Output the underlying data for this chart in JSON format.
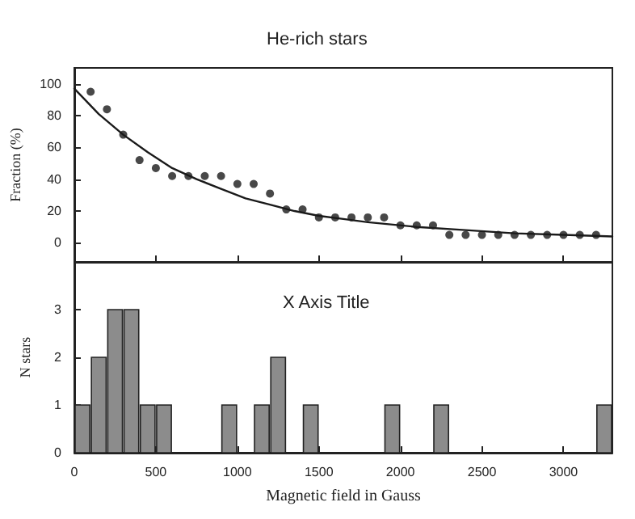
{
  "chart_data": [
    {
      "type": "scatter",
      "title": "He-rich stars",
      "ylabel": "Fraction (%)",
      "xlim": [
        0,
        3300
      ],
      "xticks": [
        {
          "value": 0,
          "label": null
        },
        {
          "value": 500,
          "label": null
        },
        {
          "value": 1000,
          "label": null
        },
        {
          "value": 1500,
          "label": null
        },
        {
          "value": 2000,
          "label": null
        },
        {
          "value": 2500,
          "label": null
        },
        {
          "value": 3000,
          "label": null
        }
      ],
      "ylim": [
        -12,
        110
      ],
      "yticks": [
        0,
        20,
        40,
        60,
        80,
        100
      ],
      "tick_labels": "y",
      "marker": "circle",
      "series": [
        {
          "type": "scatter",
          "color": "#1a1a1a",
          "x": [
            100,
            200,
            300,
            400,
            500,
            600,
            700,
            800,
            900,
            1000,
            1100,
            1200,
            1300,
            1400,
            1500,
            1600,
            1700,
            1800,
            1900,
            2000,
            2100,
            2200,
            2300,
            2400,
            2500,
            2600,
            2700,
            2800,
            2900,
            3000,
            3100,
            3200
          ],
          "values": [
            95,
            84,
            68,
            52,
            47,
            42,
            42,
            42,
            42,
            37,
            37,
            31,
            21,
            21,
            16,
            16,
            16,
            16,
            16,
            11,
            11,
            11,
            5,
            5,
            5,
            5,
            5,
            5,
            5,
            5,
            5,
            5
          ]
        },
        {
          "type": "line",
          "color": "#1a1a1a",
          "marker": "none",
          "line_style": "solid",
          "x": [
            0,
            150,
            300,
            450,
            600,
            750,
            900,
            1050,
            1200,
            1350,
            1500,
            1650,
            1800,
            2100,
            2400,
            2700,
            3000,
            3300
          ],
          "values": [
            97,
            81,
            68,
            57,
            47,
            40,
            34,
            28,
            24,
            20,
            17,
            15,
            13,
            10,
            8,
            6,
            5,
            4
          ]
        }
      ]
    },
    {
      "type": "histogram",
      "xlabel": "Magnetic field in Gauss",
      "ylabel": "N stars",
      "annotations": [
        "X Axis Title"
      ],
      "color": "#8c8c8c",
      "xlim": [
        0,
        3300
      ],
      "xticks": [
        0,
        500,
        1000,
        1500,
        2000,
        2500,
        3000
      ],
      "ylim": [
        0,
        4
      ],
      "yticks": [
        0,
        1,
        2,
        3
      ],
      "bins": [
        0,
        100,
        200,
        300,
        400,
        500,
        600,
        700,
        800,
        900,
        1000,
        1100,
        1200,
        1300,
        1400,
        1500,
        1600,
        1700,
        1800,
        1900,
        2000,
        2100,
        2200,
        2300,
        2400,
        2500,
        2600,
        2700,
        2800,
        2900,
        3000,
        3100,
        3200,
        3300
      ],
      "values": [
        1,
        2,
        3,
        3,
        1,
        1,
        0,
        0,
        0,
        1,
        0,
        1,
        2,
        0,
        1,
        0,
        0,
        0,
        0,
        1,
        0,
        0,
        1,
        0,
        0,
        0,
        0,
        0,
        0,
        0,
        0,
        0,
        1
      ]
    }
  ]
}
